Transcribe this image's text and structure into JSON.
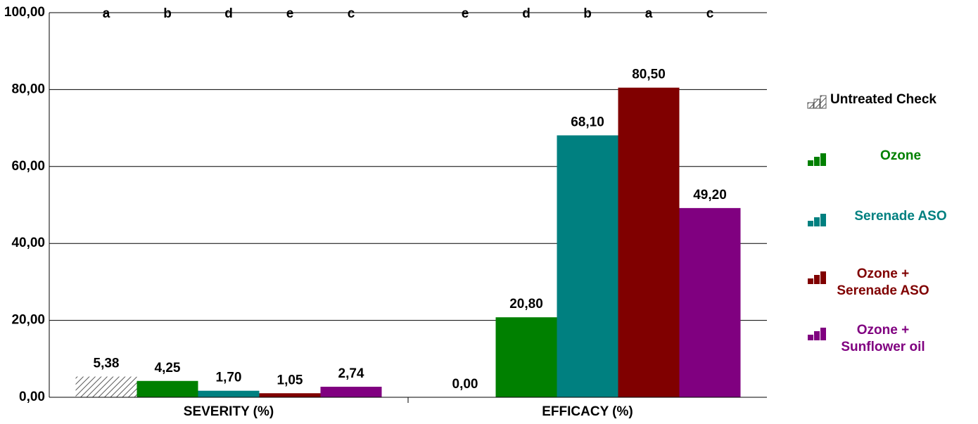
{
  "chart_data": {
    "type": "bar",
    "categories": [
      "SEVERITY (%)",
      "EFFICACY (%)"
    ],
    "ylim": [
      0,
      100
    ],
    "yticks": [
      {
        "value": 0,
        "label": "0,00"
      },
      {
        "value": 20,
        "label": "20,00"
      },
      {
        "value": 40,
        "label": "40,00"
      },
      {
        "value": 60,
        "label": "60,00"
      },
      {
        "value": 80,
        "label": "80,00"
      },
      {
        "value": 100,
        "label": "100,00"
      }
    ],
    "grid": true,
    "legend": "right",
    "series": [
      {
        "name": "Untreated Check",
        "color": "#808080",
        "hatch": true,
        "values": [
          5.38,
          0
        ],
        "value_labels": [
          "5,38",
          "0,00"
        ],
        "letters": [
          "a",
          "e"
        ]
      },
      {
        "name": "Ozone",
        "color": "#008000",
        "values": [
          4.25,
          20.8
        ],
        "value_labels": [
          "4,25",
          "20,80"
        ],
        "letters": [
          "b",
          "d"
        ]
      },
      {
        "name": "Serenade ASO",
        "color": "#008080",
        "values": [
          1.7,
          68.1
        ],
        "value_labels": [
          "1,70",
          "68,10"
        ],
        "letters": [
          "d",
          "b"
        ]
      },
      {
        "name": "Ozone + Serenade ASO",
        "color": "#800000",
        "values": [
          1.05,
          80.5
        ],
        "value_labels": [
          "1,05",
          "80,50"
        ],
        "letters": [
          "e",
          "a"
        ]
      },
      {
        "name": "Ozone + Sunflower oil",
        "color": "#800080",
        "values": [
          2.74,
          49.2
        ],
        "value_labels": [
          "2,74",
          "49,20"
        ],
        "letters": [
          "c",
          "c"
        ]
      }
    ]
  }
}
